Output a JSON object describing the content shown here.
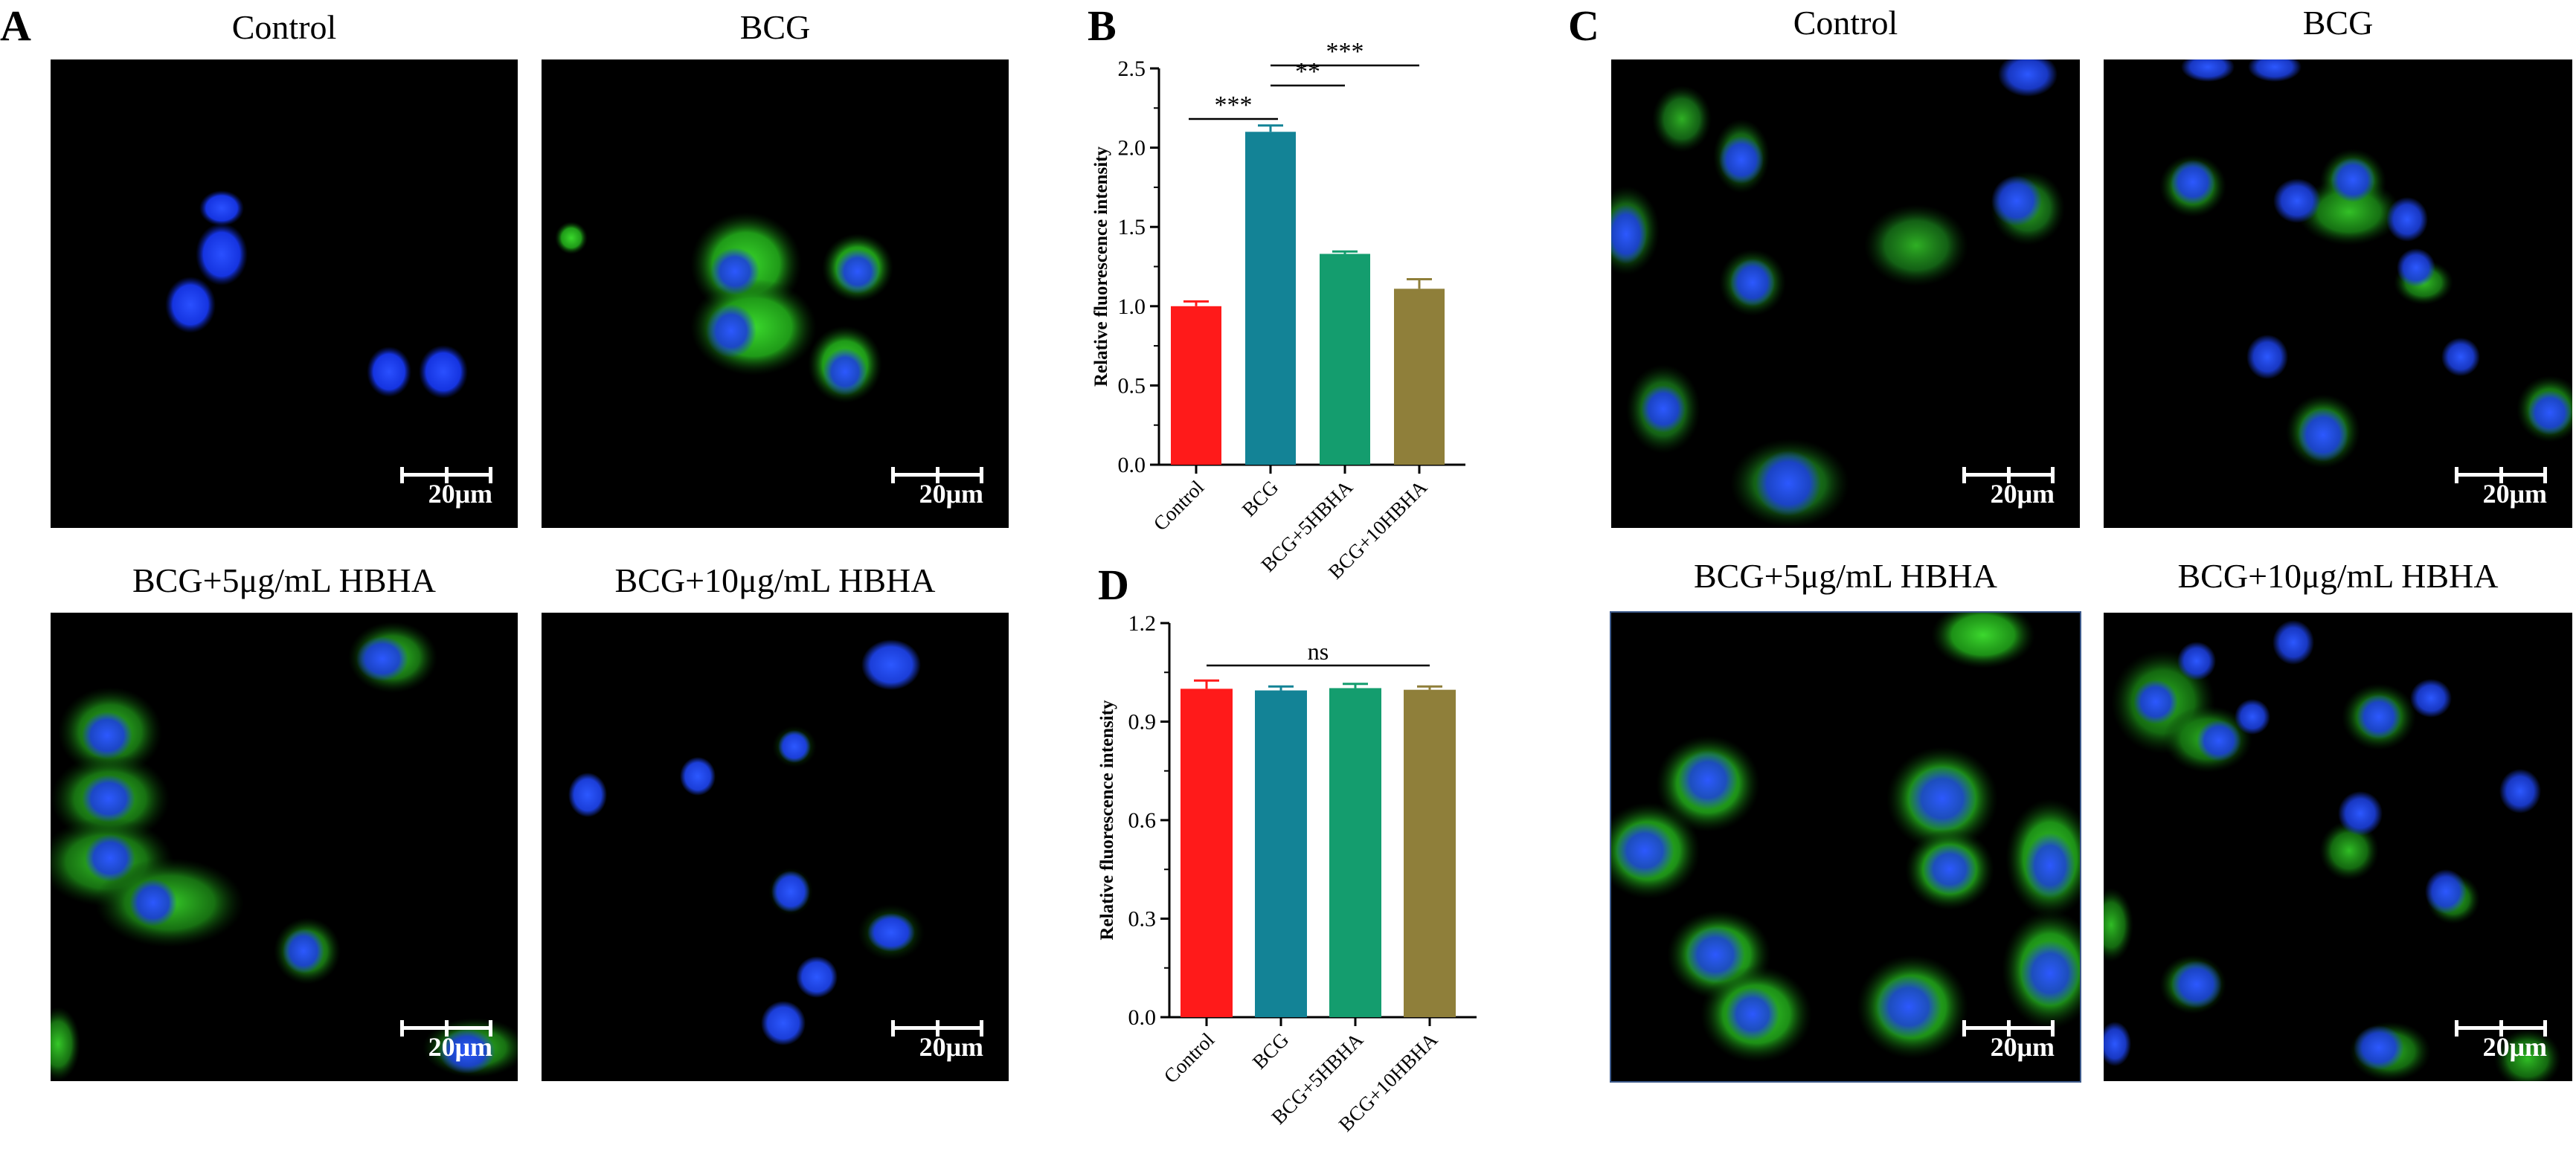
{
  "panels": {
    "A": "A",
    "B": "B",
    "C": "C",
    "D": "D"
  },
  "panel_A": {
    "titles": [
      "Control",
      "BCG",
      "BCG+5μg/mL HBHA",
      "BCG+10μg/mL HBHA"
    ],
    "scale_label": "20μm"
  },
  "panel_C": {
    "titles": [
      "Control",
      "BCG",
      "BCG+5μg/mL HBHA",
      "BCG+10μg/mL HBHA"
    ],
    "scale_label": "20μm"
  },
  "colors": {
    "control": "#ff1a1a",
    "bcg": "#138396",
    "bcg5": "#149d6e",
    "bcg10": "#8f7f3a",
    "nucleus": "#1a3cff",
    "stain": "#27c51f"
  },
  "chart_data": [
    {
      "panel": "B",
      "type": "bar",
      "categories": [
        "Control",
        "BCG",
        "BCG+5HBHA",
        "BCG+10HBHA"
      ],
      "values": [
        1.0,
        2.1,
        1.33,
        1.11
      ],
      "errors": [
        0.03,
        0.04,
        0.015,
        0.06
      ],
      "ylabel": "Relative fluorescence intensity",
      "ylim": [
        0,
        2.5
      ],
      "yticks": [
        "0.0",
        "0.5",
        "1.0",
        "1.5",
        "2.0",
        "2.5"
      ],
      "yticks_values": [
        0,
        0.5,
        1.0,
        1.5,
        2.0,
        2.5
      ],
      "significance": [
        {
          "from": 0,
          "to": 1,
          "label": "***"
        },
        {
          "from": 1,
          "to": 2,
          "label": "**"
        },
        {
          "from": 1,
          "to": 3,
          "label": "***"
        }
      ]
    },
    {
      "panel": "D",
      "type": "bar",
      "categories": [
        "Control",
        "BCG",
        "BCG+5HBHA",
        "BCG+10HBHA"
      ],
      "values": [
        1.0,
        0.995,
        1.002,
        0.997
      ],
      "errors": [
        0.025,
        0.012,
        0.013,
        0.01
      ],
      "ylabel": "Relative fluorescence intensity",
      "ylim": [
        0,
        1.2
      ],
      "yticks": [
        "0.0",
        "0.3",
        "0.6",
        "0.9",
        "1.2"
      ],
      "yticks_values": [
        0,
        0.3,
        0.6,
        0.9,
        1.2
      ],
      "significance": [
        {
          "from": 0,
          "to": 3,
          "label": "ns"
        }
      ]
    }
  ]
}
